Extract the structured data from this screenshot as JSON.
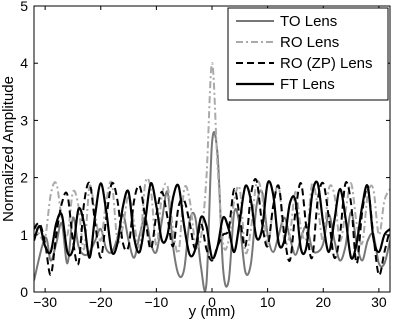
{
  "chart_data": {
    "type": "line",
    "xlabel": "y (mm)",
    "ylabel": "Normalized Amplitude",
    "xlim": [
      -32,
      32
    ],
    "ylim": [
      0,
      5
    ],
    "xticks": [
      -30,
      -20,
      -10,
      0,
      10,
      20,
      30
    ],
    "xtick_labels": [
      "−30",
      "−20",
      "−10",
      "0",
      "10",
      "20",
      "30"
    ],
    "yticks": [
      0,
      1,
      2,
      3,
      4,
      5
    ],
    "ytick_labels": [
      "0",
      "1",
      "2",
      "3",
      "4",
      "5"
    ],
    "grid": false,
    "legend_position": "top-right",
    "series": [
      {
        "name": "TO Lens",
        "color": "#777777",
        "dash": "solid",
        "x": [
          -32,
          -30,
          -29,
          -28,
          -27,
          -26,
          -25,
          -24,
          -23,
          -22,
          -21,
          -20,
          -19,
          -18,
          -17,
          -16,
          -15,
          -14,
          -13,
          -12,
          -11,
          -10,
          -9,
          -8,
          -7,
          -6,
          -5,
          -4,
          -3,
          -2,
          -1,
          0,
          1,
          2,
          3,
          4,
          5,
          6,
          7,
          8,
          9,
          10,
          11,
          12,
          13,
          14,
          15,
          16,
          17,
          18,
          19,
          20,
          21,
          22,
          23,
          24,
          25,
          26,
          27,
          28,
          29,
          30,
          31,
          32
        ],
        "y": [
          0.2,
          0.95,
          0.55,
          0.85,
          1.2,
          0.5,
          1.3,
          0.8,
          0.65,
          0.7,
          0.9,
          1.1,
          0.75,
          0.7,
          0.95,
          1.35,
          0.9,
          0.6,
          1.0,
          1.3,
          0.85,
          0.7,
          1.25,
          1.75,
          0.8,
          0.3,
          0.4,
          1.25,
          1.3,
          0.45,
          0.15,
          2.6,
          2.4,
          0.4,
          0.2,
          1.4,
          1.15,
          0.35,
          0.5,
          1.5,
          1.75,
          1.0,
          0.7,
          1.0,
          1.3,
          0.95,
          0.65,
          0.95,
          1.15,
          0.75,
          0.7,
          0.85,
          1.35,
          0.9,
          0.55,
          0.8,
          1.4,
          0.85,
          0.55,
          0.9,
          1.0,
          0.5,
          0.5,
          0.9
        ]
      },
      {
        "name": "RO Lens",
        "color": "#aaaaaa",
        "dash": "dashdot",
        "x": [
          -32,
          -31,
          -30,
          -29,
          -28,
          -27,
          -26,
          -25,
          -24,
          -23,
          -22,
          -21,
          -20,
          -19,
          -18,
          -17,
          -16,
          -15,
          -14,
          -13,
          -12,
          -11,
          -10,
          -9,
          -8,
          -7,
          -6,
          -5,
          -4,
          -3,
          -2,
          -1,
          0,
          1,
          2,
          3,
          4,
          5,
          6,
          7,
          8,
          9,
          10,
          11,
          12,
          13,
          14,
          15,
          16,
          17,
          18,
          19,
          20,
          21,
          22,
          23,
          24,
          25,
          26,
          27,
          28,
          29,
          30,
          31,
          32
        ],
        "y": [
          1.2,
          1.0,
          0.95,
          1.7,
          1.9,
          1.3,
          1.0,
          1.75,
          1.5,
          0.75,
          1.85,
          1.35,
          0.9,
          1.6,
          1.9,
          0.9,
          1.15,
          1.7,
          1.2,
          0.8,
          1.9,
          1.8,
          0.8,
          1.7,
          1.85,
          1.1,
          0.7,
          1.8,
          1.6,
          0.85,
          0.95,
          2.0,
          4.0,
          2.2,
          0.85,
          0.9,
          1.6,
          1.8,
          0.7,
          1.1,
          1.9,
          1.7,
          0.8,
          1.5,
          1.85,
          0.9,
          1.0,
          1.75,
          1.1,
          0.95,
          1.9,
          1.5,
          0.9,
          1.8,
          1.7,
          0.9,
          1.4,
          1.9,
          1.2,
          0.85,
          1.7,
          1.8,
          1.0,
          1.6,
          1.8
        ]
      },
      {
        "name": "RO (ZP) Lens",
        "color": "#000000",
        "dash": "dashed",
        "x": [
          -32,
          -31,
          -30,
          -29,
          -28,
          -27,
          -26,
          -25,
          -24,
          -23,
          -22,
          -21,
          -20,
          -19,
          -18,
          -17,
          -16,
          -15,
          -14,
          -13,
          -12,
          -11,
          -10,
          -9,
          -8,
          -7,
          -6,
          -5,
          -4,
          -3,
          -2,
          -1,
          0,
          1,
          2,
          3,
          4,
          5,
          6,
          7,
          8,
          9,
          10,
          11,
          12,
          13,
          14,
          15,
          16,
          17,
          18,
          19,
          20,
          21,
          22,
          23,
          24,
          25,
          26,
          27,
          28,
          29,
          30,
          31,
          32
        ],
        "y": [
          1.1,
          1.2,
          0.85,
          0.3,
          1.0,
          1.55,
          1.7,
          0.9,
          0.5,
          1.55,
          1.9,
          1.2,
          0.6,
          1.3,
          1.9,
          1.6,
          0.85,
          0.8,
          1.6,
          1.85,
          1.3,
          0.75,
          1.35,
          1.75,
          1.3,
          0.8,
          1.5,
          1.6,
          1.2,
          0.75,
          1.2,
          0.75,
          0.55,
          0.8,
          1.0,
          1.1,
          1.8,
          1.3,
          0.8,
          1.7,
          1.95,
          1.2,
          0.8,
          1.5,
          1.85,
          1.0,
          0.55,
          1.4,
          1.9,
          1.1,
          0.6,
          1.6,
          1.9,
          1.3,
          0.6,
          1.0,
          1.9,
          1.55,
          0.5,
          1.4,
          1.8,
          1.0,
          0.3,
          0.7,
          1.1
        ]
      },
      {
        "name": "FT Lens",
        "color": "#000000",
        "dash": "solid",
        "x": [
          -32,
          -31,
          -30,
          -29,
          -28,
          -27,
          -26,
          -25,
          -24,
          -23,
          -22,
          -21,
          -20,
          -19,
          -18,
          -17,
          -16,
          -15,
          -14,
          -13,
          -12,
          -11,
          -10,
          -9,
          -8,
          -7,
          -6,
          -5,
          -4,
          -3,
          -2,
          -1,
          0,
          1,
          2,
          3,
          4,
          5,
          6,
          7,
          8,
          9,
          10,
          11,
          12,
          13,
          14,
          15,
          16,
          17,
          18,
          19,
          20,
          21,
          22,
          23,
          24,
          25,
          26,
          27,
          28,
          29,
          30,
          31,
          32
        ],
        "y": [
          0.9,
          1.15,
          0.8,
          0.7,
          1.2,
          1.35,
          0.7,
          0.75,
          1.45,
          1.2,
          0.6,
          1.35,
          1.9,
          1.4,
          0.7,
          0.85,
          1.5,
          1.75,
          0.95,
          0.7,
          1.25,
          1.9,
          1.5,
          0.9,
          1.0,
          1.65,
          1.85,
          1.15,
          0.65,
          0.75,
          1.3,
          1.15,
          0.6,
          0.8,
          1.3,
          1.1,
          0.7,
          1.25,
          1.85,
          1.6,
          0.95,
          1.1,
          1.9,
          1.7,
          0.85,
          0.9,
          1.55,
          1.6,
          0.75,
          0.8,
          1.7,
          1.9,
          1.2,
          0.7,
          1.25,
          1.8,
          1.3,
          0.6,
          0.85,
          1.5,
          1.85,
          0.95,
          0.7,
          1.0,
          1.1
        ]
      }
    ]
  }
}
